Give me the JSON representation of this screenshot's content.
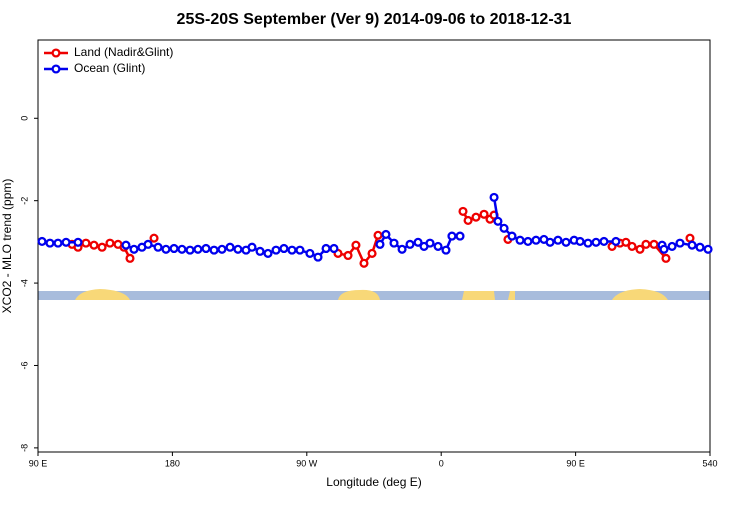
{
  "chart_data": {
    "type": "line",
    "title": "25S-20S September (Ver 9)   2014-09-06 to 2018-12-31",
    "x_label": "Longitude (deg E)",
    "y_label": "XCO2 - MLO trend (ppm)",
    "xlim": [
      90,
      540
    ],
    "xticks": [
      {
        "value": 90,
        "label": "90 E"
      },
      180,
      {
        "value": 270,
        "label": "90 W"
      },
      {
        "value": 360,
        "label": "0"
      },
      {
        "value": 450,
        "label": "90 E"
      },
      540
    ],
    "ylim": [
      -8.1,
      1.9
    ],
    "yticks": [
      0,
      -2,
      -4,
      -6,
      -8
    ],
    "legend": "top-left",
    "series": [
      {
        "name": "Land (Nadir&Glint)",
        "color": "#ee0000",
        "x": [
          112.8,
          116.8,
          122.1,
          127.5,
          132.9,
          138.2,
          143.6,
          147.6,
          151.6,
          null,
          167.7,
          null,
          290.9,
          297.6,
          302.9,
          308.3,
          313.7,
          317.7,
          null,
          374.6,
          378,
          383.3,
          388.7,
          392.7,
          395.4,
          null,
          404.7,
          null,
          474.4,
          479.7,
          483.7,
          487.8,
          493.1,
          497.1,
          502.5,
          510.5,
          null,
          526.6
        ],
        "values": [
          -3.06,
          -3.13,
          -3.03,
          -3.08,
          -3.13,
          -3.03,
          -3.06,
          -3.13,
          -3.4,
          null,
          -2.91,
          null,
          -3.28,
          -3.33,
          -3.08,
          -3.52,
          -3.28,
          -2.84,
          null,
          -2.26,
          -2.48,
          -2.4,
          -2.33,
          -2.45,
          -2.35,
          null,
          -2.94,
          null,
          -3.11,
          -3.03,
          -3.01,
          -3.11,
          -3.18,
          -3.06,
          -3.06,
          -3.4,
          null,
          -2.91
        ]
      },
      {
        "name": "Ocean (Glint)",
        "color": "#0000ee",
        "x": [
          92.7,
          98,
          103.4,
          108.8,
          116.8,
          null,
          148.9,
          154.3,
          159.6,
          163.7,
          170.4,
          175.7,
          181.1,
          186.4,
          191.8,
          197.1,
          202.5,
          207.9,
          213.2,
          218.6,
          223.9,
          229.3,
          233.3,
          238.7,
          244,
          249.4,
          254.7,
          260.1,
          265.4,
          272.1,
          277.5,
          282.9,
          288.2,
          null,
          319,
          323,
          328.4,
          333.8,
          339.1,
          344.5,
          348.5,
          352.5,
          357.9,
          363.2,
          367.2,
          372.6,
          null,
          395.4,
          398,
          402.1,
          407.4,
          412.8,
          418.1,
          423.5,
          428.8,
          432.9,
          438.2,
          443.6,
          449,
          453,
          458.3,
          463.7,
          469,
          477,
          null,
          507.9,
          509.2,
          514.6,
          519.9,
          528,
          533.3,
          538.7
        ],
        "values": [
          -2.99,
          -3.03,
          -3.03,
          -3.01,
          -3.01,
          null,
          -3.08,
          -3.18,
          -3.13,
          -3.06,
          -3.13,
          -3.18,
          -3.16,
          -3.18,
          -3.2,
          -3.18,
          -3.16,
          -3.2,
          -3.18,
          -3.13,
          -3.18,
          -3.2,
          -3.13,
          -3.23,
          -3.28,
          -3.2,
          -3.16,
          -3.2,
          -3.2,
          -3.28,
          -3.37,
          -3.16,
          -3.16,
          null,
          -3.06,
          -2.82,
          -3.03,
          -3.18,
          -3.06,
          -3.01,
          -3.11,
          -3.03,
          -3.11,
          -3.2,
          -2.86,
          -2.86,
          null,
          -1.92,
          -2.5,
          -2.67,
          -2.86,
          -2.96,
          -2.99,
          -2.96,
          -2.94,
          -3.01,
          -2.96,
          -3.01,
          -2.96,
          -2.99,
          -3.03,
          -3.01,
          -2.99,
          -2.99,
          null,
          -3.08,
          -3.18,
          -3.11,
          -3.03,
          -3.08,
          -3.13,
          -3.18
        ]
      }
    ]
  }
}
